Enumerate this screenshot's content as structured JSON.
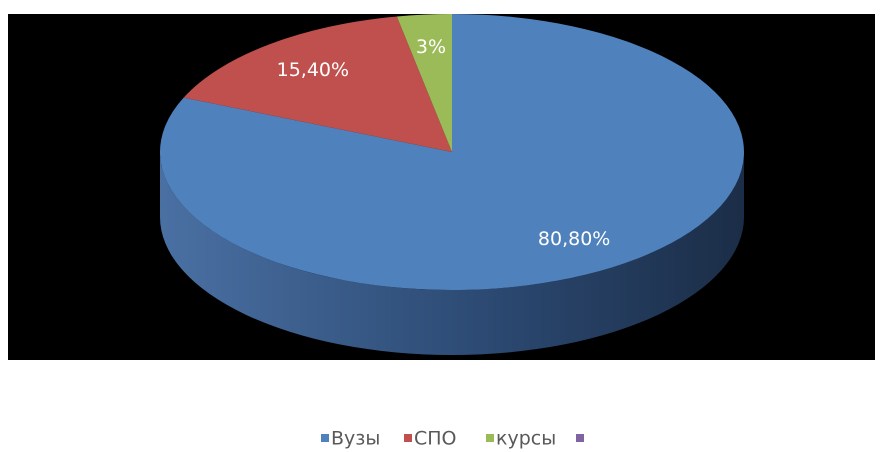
{
  "chart_data": {
    "type": "pie",
    "categories": [
      "Вузы",
      "СПО",
      "курсы",
      null
    ],
    "values": [
      80.8,
      15.4,
      3,
      0
    ],
    "value_labels": [
      "80,80%",
      "15,40%",
      "3%",
      null
    ],
    "colors": [
      "#4f81bd",
      "#c0504d",
      "#9bbb59",
      "#8064a2"
    ],
    "legend": "bottom"
  }
}
